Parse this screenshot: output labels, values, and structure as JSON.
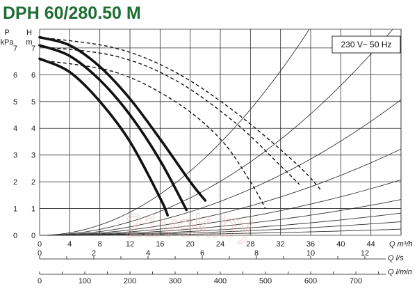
{
  "chart_data": {
    "type": "line",
    "title": "DPH 60/280.50 M",
    "annotation": "230 V~ 50 Hz",
    "watermark": "21vek.by",
    "colors": {
      "title": "#1e6e34",
      "curves": "#111111",
      "grid": "#2b2b2b"
    },
    "y_left": {
      "label_line1": "P",
      "label_line2": "kPa",
      "ticks": [
        "0",
        "1",
        "2",
        "3",
        "4",
        "5",
        "6",
        "7"
      ]
    },
    "y_right": {
      "label_line1": "H",
      "label_line2": "m",
      "ticks": [
        "0",
        "1",
        "2",
        "3",
        "4",
        "5",
        "6",
        "7"
      ],
      "ylim": [
        0,
        7.7
      ]
    },
    "x_axes": [
      {
        "label": "Q m³/h",
        "ticks": [
          "0",
          "4",
          "8",
          "12",
          "16",
          "20",
          "24",
          "28",
          "32",
          "36",
          "40",
          "44"
        ],
        "xlim": [
          0,
          48
        ]
      },
      {
        "label": "Q l/s",
        "ticks": [
          "0",
          "2",
          "4",
          "6",
          "8",
          "10",
          "12"
        ]
      },
      {
        "label": "Q l/min",
        "ticks": [
          "0",
          "100",
          "200",
          "300",
          "400",
          "500",
          "600",
          "700"
        ]
      }
    ],
    "grid": true,
    "xlabel": "Q m³/h",
    "ylabel": "H m",
    "series": [
      {
        "speed": 3,
        "x": [
          0,
          4,
          8,
          12,
          16,
          20,
          22
        ],
        "y": [
          7.4,
          7.1,
          6.3,
          5.1,
          3.6,
          2.0,
          1.3
        ]
      },
      {
        "speed": 2,
        "x": [
          0,
          4,
          8,
          12,
          16,
          19.5
        ],
        "y": [
          7.1,
          6.7,
          5.8,
          4.5,
          2.8,
          0.95
        ]
      },
      {
        "speed": 1,
        "x": [
          0,
          4,
          8,
          12,
          16,
          17
        ],
        "y": [
          6.6,
          6.1,
          5.0,
          3.5,
          1.4,
          0.75
        ]
      }
    ],
    "power_curves": [
      {
        "x": [
          0,
          10,
          18,
          26,
          34,
          37.5
        ],
        "y": [
          7.4,
          7.0,
          6.1,
          4.6,
          2.7,
          1.65
        ]
      },
      {
        "x": [
          0,
          10,
          18,
          26,
          32,
          34.5
        ],
        "y": [
          7.05,
          6.7,
          5.8,
          4.2,
          2.6,
          1.9
        ]
      },
      {
        "x": [
          0,
          10,
          18,
          24,
          28,
          30
        ],
        "y": [
          6.55,
          6.1,
          5.0,
          3.6,
          2.0,
          1.0
        ]
      }
    ],
    "system_curves": [
      {
        "k": 0.006
      },
      {
        "k": 0.0035
      },
      {
        "k": 0.0022
      },
      {
        "k": 0.0014
      },
      {
        "k": 0.0009
      },
      {
        "k": 0.00058
      },
      {
        "k": 0.00036
      },
      {
        "k": 0.00022
      },
      {
        "k": 0.0001
      }
    ]
  }
}
